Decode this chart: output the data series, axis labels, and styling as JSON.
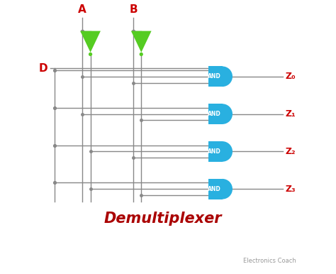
{
  "background_color": "#ffffff",
  "title": "Demultiplexer",
  "title_color": "#aa0000",
  "title_fontsize": 15,
  "watermark": "Electronics Coach",
  "watermark_color": "#999999",
  "label_A": "A",
  "label_B": "B",
  "label_D": "D",
  "label_color": "#cc0000",
  "line_color": "#888888",
  "and_gate_color": "#29b0e0",
  "inverter_color": "#55cc22",
  "output_labels": [
    "Z₀",
    "Z₁",
    "Z₂",
    "Z₃"
  ],
  "output_label_color": "#cc0000",
  "fig_w": 4.74,
  "fig_h": 3.86,
  "dpi": 100
}
